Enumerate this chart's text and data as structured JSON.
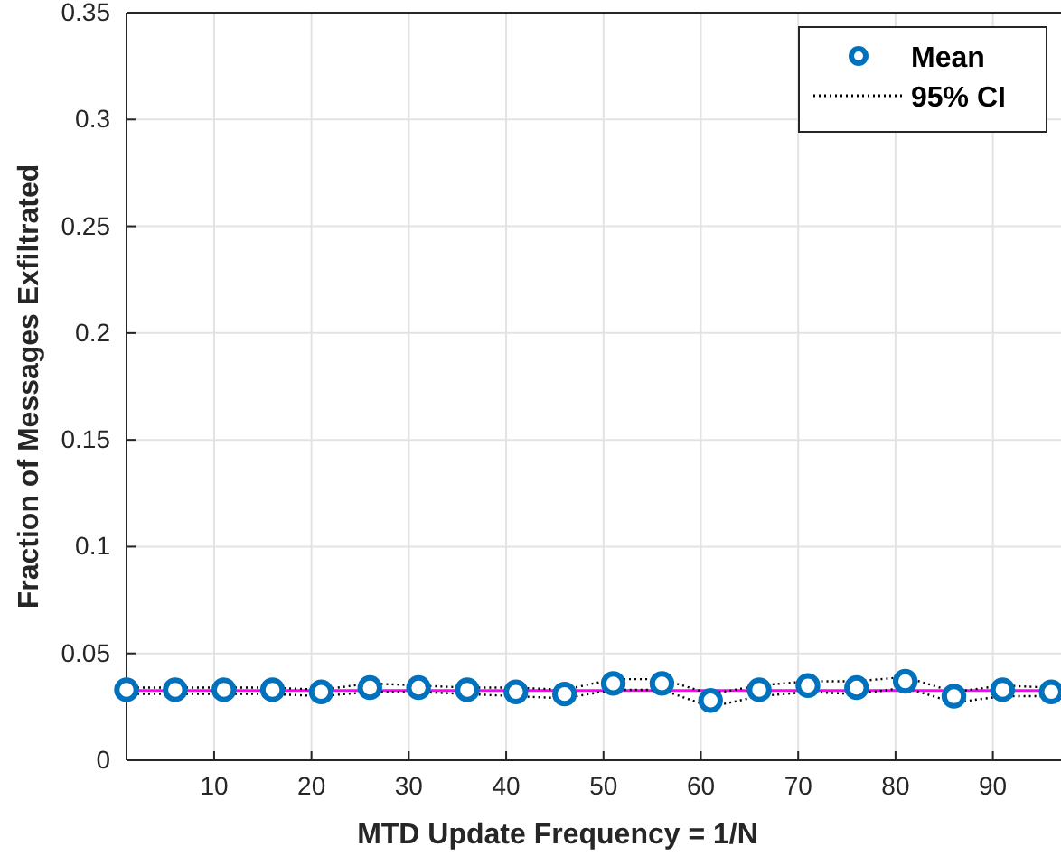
{
  "chart_data": {
    "type": "scatter",
    "xlabel": "MTD Update Frequency = 1/N",
    "ylabel": "Fraction of Messages Exfiltrated",
    "x": [
      1,
      6,
      11,
      16,
      21,
      26,
      31,
      36,
      41,
      46,
      51,
      56,
      61,
      66,
      71,
      76,
      81,
      86,
      91,
      96
    ],
    "series": [
      {
        "name": "Mean",
        "color": "#0072bd",
        "marker": "circle",
        "values": [
          0.033,
          0.033,
          0.033,
          0.033,
          0.032,
          0.034,
          0.034,
          0.033,
          0.032,
          0.031,
          0.036,
          0.036,
          0.028,
          0.033,
          0.035,
          0.034,
          0.037,
          0.03,
          0.033,
          0.032
        ]
      },
      {
        "name": "95% CI",
        "type": "line",
        "color": "#000000",
        "line_style": "dotted",
        "marker": "none",
        "values": [
          0.034,
          0.034,
          0.034,
          0.034,
          0.033,
          0.036,
          0.035,
          0.034,
          0.034,
          0.033,
          0.038,
          0.038,
          0.031,
          0.035,
          0.037,
          0.037,
          0.039,
          0.032,
          0.035,
          0.034
        ]
      },
      {
        "type": "line",
        "color": "#000000",
        "line_style": "dotted",
        "marker": "none",
        "values": [
          0.031,
          0.031,
          0.031,
          0.031,
          0.03,
          0.032,
          0.032,
          0.031,
          0.03,
          0.029,
          0.033,
          0.033,
          0.025,
          0.03,
          0.032,
          0.031,
          0.034,
          0.027,
          0.03,
          0.03
        ]
      }
    ],
    "ref_lines": [
      {
        "axis": "y",
        "value": 0.0327,
        "color": "#ff00ff",
        "line_style": "solid"
      }
    ],
    "xlim": [
      1,
      97
    ],
    "ylim": [
      0,
      0.35
    ],
    "xticks": [
      10,
      20,
      30,
      40,
      50,
      60,
      70,
      80,
      90
    ],
    "yticks": [
      0,
      0.05,
      0.1,
      0.15,
      0.2,
      0.25,
      0.3,
      0.35
    ],
    "grid": true,
    "legend": "top right"
  }
}
